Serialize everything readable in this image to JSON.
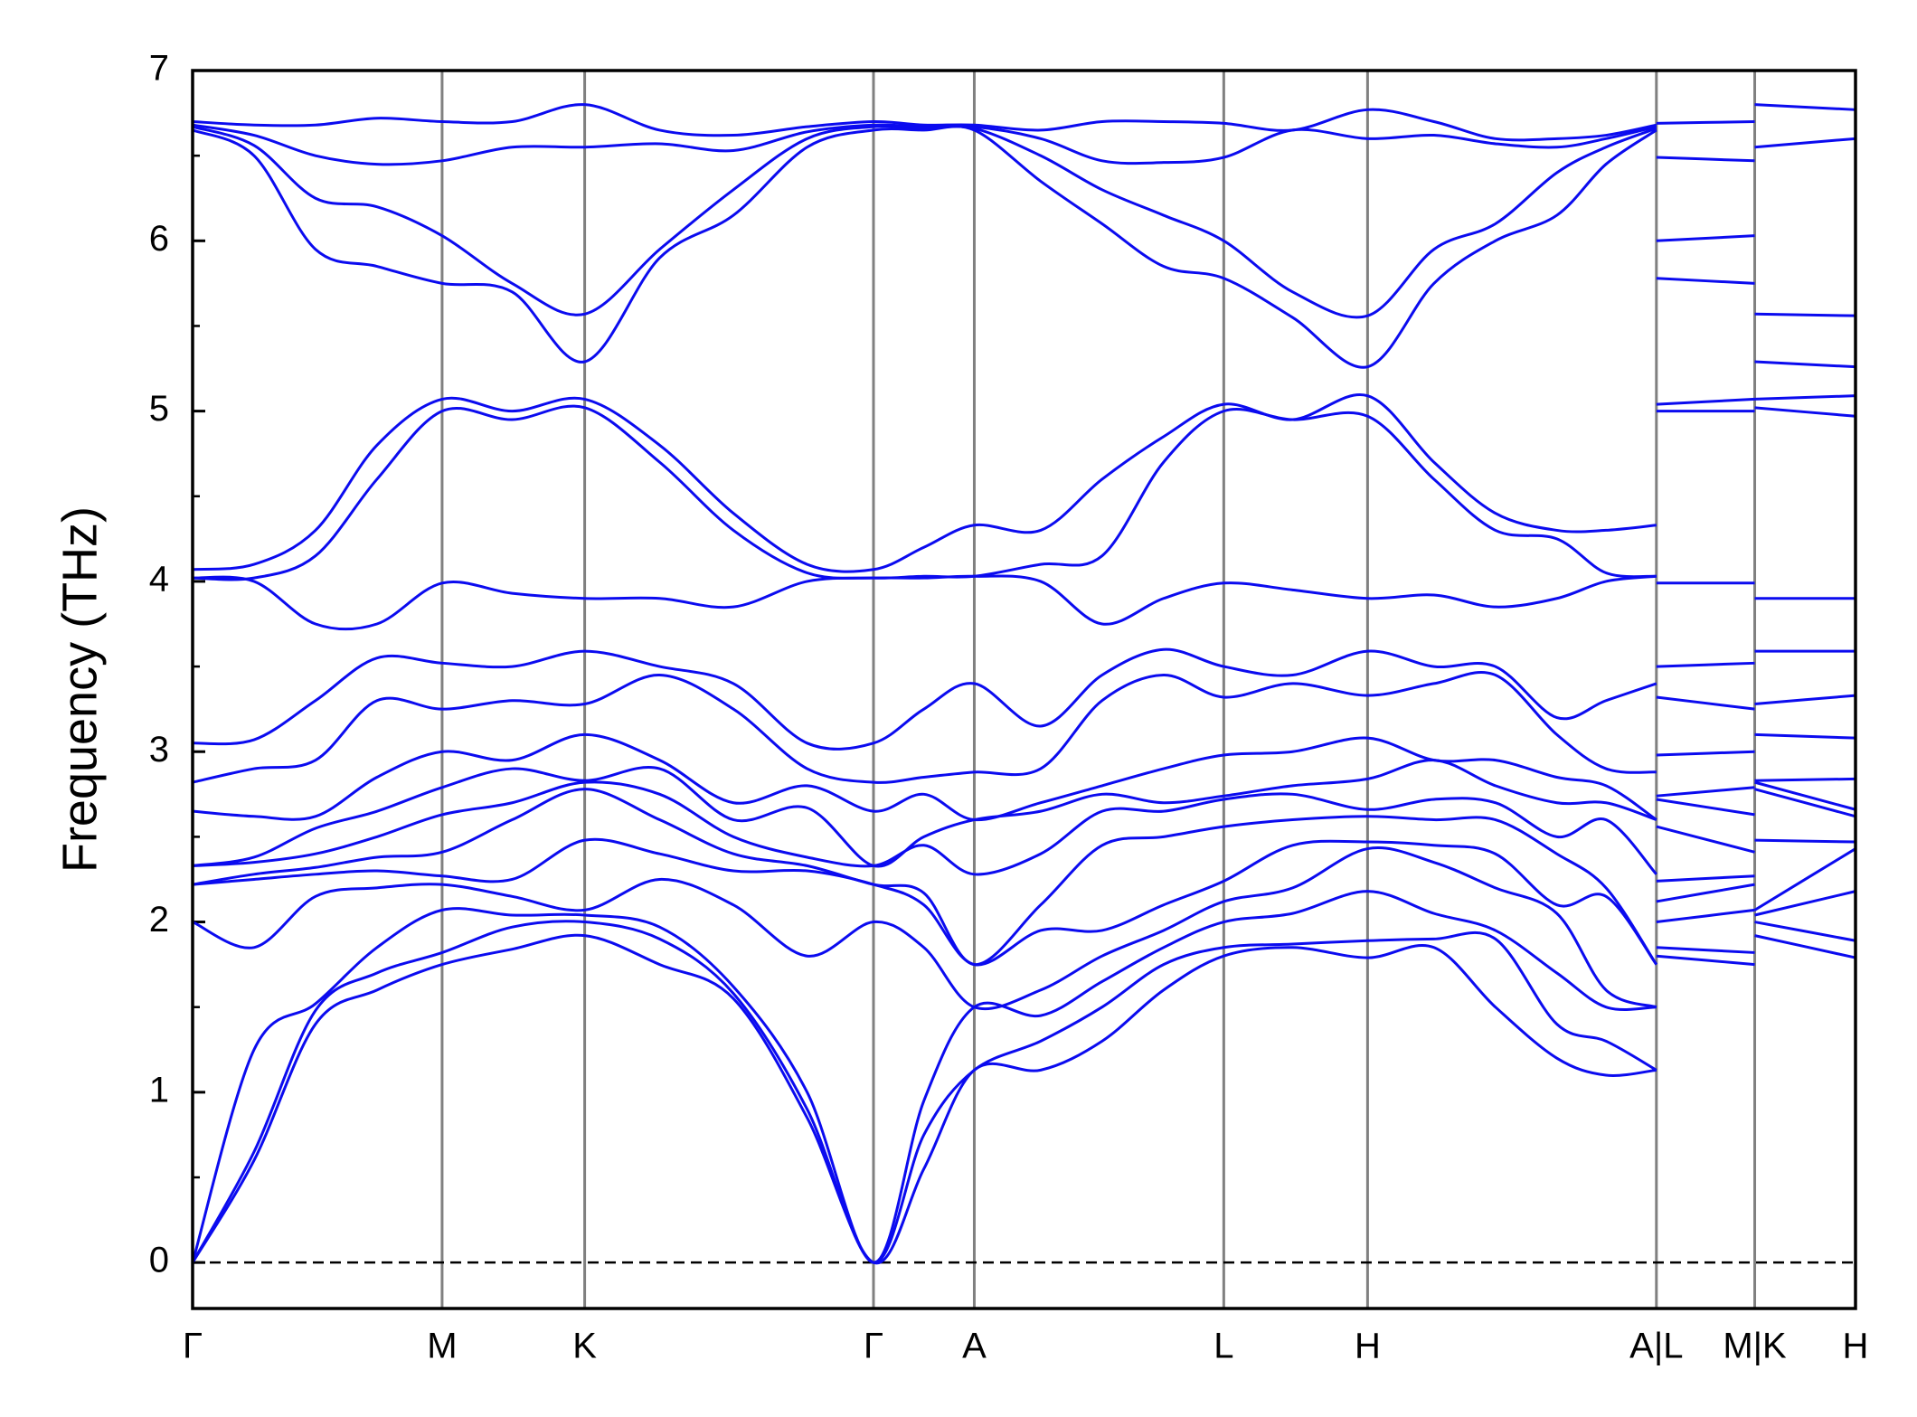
{
  "chart_data": {
    "type": "line",
    "ylabel": "Frequency (THz)",
    "color": "#0b0bef",
    "x": [
      0,
      0.5,
      1.0,
      1.5,
      2.03,
      2.6,
      3.19,
      3.8,
      4.4,
      5.0,
      5.54,
      5.95,
      6.36,
      6.9,
      7.4,
      7.9,
      8.39,
      8.95,
      9.56,
      10.1,
      10.6,
      11.1,
      11.5,
      11.91,
      11.91,
      11.91,
      12.71,
      12.71,
      12.71,
      13.53
    ],
    "xlim": [
      0,
      13.53
    ],
    "xticks": [
      {
        "value": 0,
        "label": "Γ"
      },
      {
        "value": 2.03,
        "label": "M"
      },
      {
        "value": 3.19,
        "label": "K"
      },
      {
        "value": 5.54,
        "label": "Γ"
      },
      {
        "value": 6.36,
        "label": "A"
      },
      {
        "value": 8.39,
        "label": "L"
      },
      {
        "value": 9.56,
        "label": "H"
      },
      {
        "value": 11.91,
        "label": "A|L"
      },
      {
        "value": 12.71,
        "label": "M|K"
      },
      {
        "value": 13.53,
        "label": "H"
      }
    ],
    "ylim": [
      -0.27,
      7.0
    ],
    "yticks": [
      0,
      1,
      2,
      3,
      4,
      5,
      6,
      7
    ],
    "yminorticks": [
      0.5,
      1.5,
      2.5,
      3.5,
      4.5,
      5.5,
      6.5
    ],
    "vertical_lines": true,
    "reference_line": {
      "y": 0,
      "style": "dashed"
    },
    "series": [
      {
        "values": [
          0,
          0.6,
          1.4,
          1.6,
          1.75,
          1.84,
          1.92,
          1.75,
          1.55,
          0.85,
          0,
          0.55,
          1.13,
          1.13,
          1.3,
          1.6,
          1.8,
          1.85,
          1.79,
          1.85,
          1.5,
          1.2,
          1.1,
          1.13,
          null,
          1.8,
          1.75,
          null,
          1.92,
          1.79
        ]
      },
      {
        "values": [
          0,
          0.65,
          1.48,
          1.7,
          1.82,
          1.97,
          2.0,
          1.9,
          1.58,
          0.9,
          0,
          0.75,
          1.13,
          1.3,
          1.5,
          1.75,
          1.85,
          1.87,
          1.89,
          1.9,
          1.9,
          1.4,
          1.3,
          1.13,
          null,
          1.85,
          1.82,
          null,
          2.0,
          1.89
        ]
      },
      {
        "values": [
          0,
          1.25,
          1.52,
          1.85,
          2.07,
          2.04,
          2.04,
          1.97,
          1.62,
          1.0,
          0,
          0.95,
          1.5,
          1.45,
          1.65,
          1.85,
          2.0,
          2.05,
          2.18,
          2.05,
          1.95,
          1.7,
          1.5,
          1.5,
          null,
          2.0,
          2.07,
          null,
          2.04,
          2.18
        ]
      },
      {
        "values": [
          2.0,
          1.85,
          2.15,
          2.2,
          2.22,
          2.15,
          2.07,
          2.25,
          2.1,
          1.8,
          2.0,
          1.85,
          1.5,
          1.6,
          1.8,
          1.95,
          2.12,
          2.2,
          2.43,
          2.35,
          2.2,
          2.05,
          1.6,
          1.5,
          null,
          2.12,
          2.22,
          null,
          2.07,
          2.43
        ]
      },
      {
        "values": [
          2.22,
          2.25,
          2.28,
          2.3,
          2.27,
          2.25,
          2.48,
          2.4,
          2.3,
          2.3,
          2.22,
          2.1,
          1.75,
          1.95,
          1.95,
          2.1,
          2.24,
          2.45,
          2.47,
          2.45,
          2.4,
          2.1,
          2.15,
          1.75,
          null,
          2.24,
          2.27,
          null,
          2.48,
          2.47
        ]
      },
      {
        "values": [
          2.22,
          2.28,
          2.32,
          2.38,
          2.41,
          2.6,
          2.78,
          2.6,
          2.4,
          2.33,
          2.22,
          2.17,
          1.75,
          2.1,
          2.45,
          2.5,
          2.56,
          2.6,
          2.62,
          2.6,
          2.6,
          2.4,
          2.2,
          1.75,
          null,
          2.56,
          2.41,
          null,
          2.78,
          2.62
        ]
      },
      {
        "values": [
          2.33,
          2.35,
          2.4,
          2.5,
          2.63,
          2.7,
          2.82,
          2.75,
          2.5,
          2.38,
          2.33,
          2.45,
          2.28,
          2.4,
          2.65,
          2.65,
          2.72,
          2.75,
          2.66,
          2.72,
          2.7,
          2.5,
          2.6,
          2.28,
          null,
          2.72,
          2.63,
          null,
          2.82,
          2.66
        ]
      },
      {
        "values": [
          2.33,
          2.38,
          2.55,
          2.65,
          2.79,
          2.9,
          2.83,
          2.9,
          2.6,
          2.67,
          2.33,
          2.5,
          2.6,
          2.65,
          2.75,
          2.7,
          2.74,
          2.8,
          2.84,
          2.95,
          2.8,
          2.7,
          2.7,
          2.6,
          null,
          2.74,
          2.79,
          null,
          2.83,
          2.84
        ]
      },
      {
        "values": [
          2.65,
          2.62,
          2.62,
          2.85,
          3.0,
          2.95,
          3.1,
          2.95,
          2.7,
          2.8,
          2.65,
          2.75,
          2.6,
          2.7,
          2.8,
          2.9,
          2.98,
          3.0,
          3.08,
          2.95,
          2.95,
          2.85,
          2.8,
          2.6,
          null,
          2.98,
          3.0,
          null,
          3.1,
          3.08
        ]
      },
      {
        "values": [
          2.82,
          2.9,
          2.95,
          3.3,
          3.25,
          3.3,
          3.28,
          3.45,
          3.25,
          2.9,
          2.82,
          2.85,
          2.88,
          2.9,
          3.3,
          3.45,
          3.32,
          3.4,
          3.33,
          3.4,
          3.45,
          3.1,
          2.9,
          2.88,
          null,
          3.32,
          3.25,
          null,
          3.28,
          3.33
        ]
      },
      {
        "values": [
          3.05,
          3.07,
          3.3,
          3.55,
          3.52,
          3.5,
          3.59,
          3.5,
          3.4,
          3.05,
          3.05,
          3.25,
          3.4,
          3.15,
          3.45,
          3.6,
          3.5,
          3.45,
          3.59,
          3.5,
          3.5,
          3.2,
          3.3,
          3.4,
          null,
          3.5,
          3.52,
          null,
          3.59,
          3.59
        ]
      },
      {
        "values": [
          4.02,
          4.0,
          3.75,
          3.75,
          3.99,
          3.93,
          3.9,
          3.9,
          3.85,
          4.0,
          4.02,
          4.02,
          4.03,
          4.0,
          3.75,
          3.9,
          3.99,
          3.95,
          3.9,
          3.92,
          3.85,
          3.9,
          4.0,
          4.03,
          null,
          3.99,
          3.99,
          null,
          3.9,
          3.9
        ]
      },
      {
        "values": [
          4.02,
          4.02,
          4.15,
          4.6,
          5.0,
          4.95,
          5.02,
          4.7,
          4.3,
          4.05,
          4.02,
          4.03,
          4.03,
          4.1,
          4.15,
          4.7,
          5.0,
          4.95,
          4.97,
          4.6,
          4.3,
          4.25,
          4.05,
          4.03,
          null,
          5.0,
          5.0,
          null,
          5.02,
          4.97
        ]
      },
      {
        "values": [
          4.07,
          4.1,
          4.3,
          4.8,
          5.07,
          5.0,
          5.07,
          4.8,
          4.4,
          4.1,
          4.07,
          4.2,
          4.33,
          4.3,
          4.6,
          4.85,
          5.04,
          4.95,
          5.09,
          4.7,
          4.4,
          4.3,
          4.3,
          4.33,
          null,
          5.04,
          5.07,
          null,
          5.07,
          5.09
        ]
      },
      {
        "values": [
          6.65,
          6.5,
          5.95,
          5.85,
          5.75,
          5.7,
          5.29,
          5.9,
          6.15,
          6.55,
          6.65,
          6.65,
          6.65,
          6.35,
          6.1,
          5.85,
          5.78,
          5.55,
          5.26,
          5.75,
          6.0,
          6.15,
          6.45,
          6.65,
          null,
          5.78,
          5.75,
          null,
          5.29,
          5.26
        ]
      },
      {
        "values": [
          6.67,
          6.56,
          6.25,
          6.2,
          6.03,
          5.75,
          5.57,
          5.95,
          6.3,
          6.6,
          6.67,
          6.66,
          6.66,
          6.5,
          6.3,
          6.15,
          6.0,
          5.7,
          5.56,
          5.95,
          6.1,
          6.4,
          6.55,
          6.66,
          null,
          6.0,
          6.03,
          null,
          5.57,
          5.56
        ]
      },
      {
        "values": [
          6.68,
          6.62,
          6.5,
          6.45,
          6.47,
          6.55,
          6.55,
          6.57,
          6.53,
          6.64,
          6.68,
          6.67,
          6.67,
          6.6,
          6.47,
          6.46,
          6.49,
          6.65,
          6.6,
          6.62,
          6.57,
          6.55,
          6.6,
          6.67,
          null,
          6.49,
          6.47,
          null,
          6.55,
          6.6
        ]
      },
      {
        "values": [
          6.7,
          6.68,
          6.68,
          6.72,
          6.7,
          6.7,
          6.8,
          6.65,
          6.62,
          6.67,
          6.7,
          6.68,
          6.68,
          6.65,
          6.7,
          6.7,
          6.69,
          6.65,
          6.77,
          6.7,
          6.6,
          6.6,
          6.62,
          6.68,
          null,
          6.69,
          6.7,
          null,
          6.8,
          6.77
        ]
      }
    ]
  }
}
